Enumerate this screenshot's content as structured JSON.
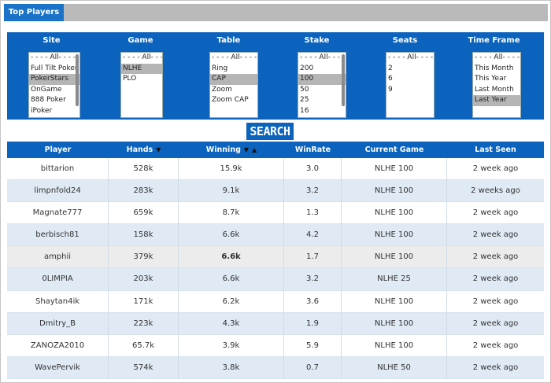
{
  "tab": {
    "label": "Top Players"
  },
  "filters": [
    {
      "label": "Site",
      "options": [
        "- - - - All- - - -",
        "Full Tilt Poker",
        "PokerStars",
        "OnGame",
        "888 Poker",
        "iPoker"
      ],
      "selected": 2
    },
    {
      "label": "Game",
      "options": [
        "- - - - All- - - -",
        "NLHE",
        "PLO"
      ],
      "selected": 1
    },
    {
      "label": "Table",
      "options": [
        "- - - - All- - - -",
        "Ring",
        "CAP",
        "Zoom",
        "Zoom CAP"
      ],
      "selected": 2
    },
    {
      "label": "Stake",
      "options": [
        "- - - - All- - - -",
        "200",
        "100",
        "50",
        "25",
        "16"
      ],
      "selected": 2
    },
    {
      "label": "Seats",
      "options": [
        "- - - - All- - - -",
        "2",
        "6",
        "9"
      ],
      "selected": -1
    },
    {
      "label": "Time Frame",
      "options": [
        "- - - - All- - - -",
        "This Month",
        "This Year",
        "Last Month",
        "Last Year"
      ],
      "selected": 4
    }
  ],
  "search": {
    "label": "SEARCH"
  },
  "table": {
    "headers": [
      "Player",
      "Hands",
      "Winning",
      "WinRate",
      "Current Game",
      "Last Seen"
    ],
    "sort_desc_icon": "▼",
    "sort_asc_icon": "▲",
    "rows": [
      [
        "bittarion",
        "528k",
        "15.9k",
        "3.0",
        "NLHE 100",
        "2 week ago"
      ],
      [
        "limpnfold24",
        "283k",
        "9.1k",
        "3.2",
        "NLHE 100",
        "2 weeks ago"
      ],
      [
        "Magnate777",
        "659k",
        "8.7k",
        "1.3",
        "NLHE 100",
        "2 week ago"
      ],
      [
        "berbisch81",
        "158k",
        "6.6k",
        "4.2",
        "NLHE 100",
        "2 week ago"
      ],
      [
        "amphii",
        "379k",
        "6.6k",
        "1.7",
        "NLHE 100",
        "2 week ago"
      ],
      [
        "0LIMPIA",
        "203k",
        "6.6k",
        "3.2",
        "NLHE 25",
        "2 week ago"
      ],
      [
        "Shaytan4ik",
        "171k",
        "6.2k",
        "3.6",
        "NLHE 100",
        "2 week ago"
      ],
      [
        "Dmitry_B",
        "223k",
        "4.3k",
        "1.9",
        "NLHE 100",
        "2 week ago"
      ],
      [
        "ZANOZA2010",
        "65.7k",
        "3.9k",
        "5.9",
        "NLHE 100",
        "2 week ago"
      ],
      [
        "WavePervik",
        "574k",
        "3.8k",
        "0.7",
        "NLHE 50",
        "2 week ago"
      ]
    ],
    "highlighted_row": 4
  },
  "colors": {
    "accent": "#0b63be",
    "tab": "#1a73c9",
    "row_alt": "#dfeaf4",
    "row_highlight": "#ececec",
    "selected_option": "#b5b5b5"
  }
}
